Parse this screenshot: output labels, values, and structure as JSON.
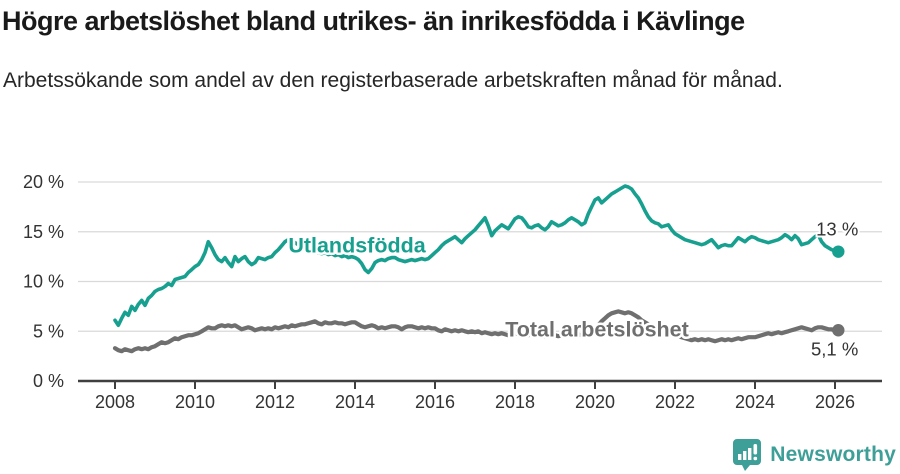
{
  "header": {
    "title": "Högre arbetslöshet bland utrikes- än inrikesfödda i Kävlinge",
    "subtitle": "Arbetssökande som andel av den registerbaserade arbetskraften månad för månad."
  },
  "chart_data": {
    "type": "line",
    "title": "Högre arbetslöshet bland utrikes- än inrikesfödda i Kävlinge",
    "subtitle": "Arbetssökande som andel av den registerbaserade arbetskraften månad för månad.",
    "grid": "horizontal",
    "legend": "inline-labels",
    "colors": {
      "grid_line": "#d9d9d9",
      "axis_line": "#3f3f3f",
      "tick_label": "#333333",
      "value_label": "#333333"
    },
    "x_axis": {
      "ticks": [
        2008,
        2010,
        2012,
        2014,
        2016,
        2018,
        2020,
        2022,
        2024,
        2026
      ],
      "tick_labels": [
        "2008",
        "2010",
        "2012",
        "2014",
        "2016",
        "2018",
        "2020",
        "2022",
        "2024",
        "2026"
      ],
      "range": [
        2007.1,
        2027.2
      ]
    },
    "y_axis": {
      "ticks": [
        0,
        5,
        10,
        15,
        20
      ],
      "tick_labels": [
        "0 %",
        "5 %",
        "10 %",
        "15 %",
        "20 %"
      ],
      "range": [
        0,
        21
      ],
      "unit": "%"
    },
    "x_start": 2008.0,
    "x_step": 0.08333,
    "series": [
      {
        "name": "Utlandsfödda",
        "label": "Utlandsfödda",
        "color": "#17a08f",
        "end_label": "13 %",
        "end_value": 13.0,
        "end_label_side": "above",
        "label_x": 2014.05,
        "label_y": 13.6,
        "values": [
          6.1,
          5.6,
          6.3,
          6.9,
          6.6,
          7.5,
          7.1,
          7.7,
          8.1,
          7.6,
          8.3,
          8.6,
          9.0,
          9.2,
          9.3,
          9.5,
          9.8,
          9.6,
          10.2,
          10.3,
          10.4,
          10.5,
          10.9,
          11.2,
          11.5,
          11.7,
          12.2,
          12.9,
          14.0,
          13.4,
          12.7,
          12.2,
          12.0,
          12.4,
          11.9,
          11.5,
          12.5,
          12.0,
          12.3,
          12.5,
          12.0,
          11.7,
          11.9,
          12.4,
          12.3,
          12.2,
          12.4,
          12.5,
          12.9,
          13.2,
          13.6,
          14.0,
          14.2,
          14.1,
          13.9,
          13.7,
          13.5,
          13.4,
          13.2,
          13.1,
          13.0,
          12.9,
          12.8,
          12.9,
          12.7,
          12.8,
          12.6,
          12.7,
          12.5,
          12.6,
          12.4,
          12.5,
          12.4,
          12.2,
          11.8,
          11.2,
          10.9,
          11.3,
          11.9,
          12.1,
          12.2,
          12.1,
          12.3,
          12.4,
          12.4,
          12.2,
          12.1,
          12.0,
          12.1,
          12.2,
          12.1,
          12.2,
          12.3,
          12.2,
          12.3,
          12.6,
          12.9,
          13.2,
          13.6,
          13.9,
          14.1,
          14.3,
          14.5,
          14.2,
          13.9,
          14.3,
          14.6,
          14.9,
          15.2,
          15.6,
          16.0,
          16.4,
          15.6,
          14.6,
          15.1,
          15.4,
          15.7,
          15.5,
          15.3,
          15.8,
          16.3,
          16.5,
          16.4,
          16.0,
          15.5,
          15.4,
          15.6,
          15.7,
          15.4,
          15.2,
          15.5,
          16.0,
          15.8,
          15.6,
          15.7,
          15.9,
          16.2,
          16.4,
          16.2,
          16.0,
          15.7,
          15.9,
          16.8,
          17.5,
          18.2,
          18.4,
          17.9,
          18.2,
          18.5,
          18.8,
          19.0,
          19.2,
          19.4,
          19.6,
          19.5,
          19.3,
          18.8,
          18.4,
          17.8,
          17.1,
          16.5,
          16.1,
          15.9,
          15.8,
          15.5,
          15.6,
          15.7,
          15.2,
          14.8,
          14.6,
          14.4,
          14.2,
          14.1,
          14.0,
          13.9,
          13.8,
          13.7,
          13.8,
          14.0,
          14.2,
          13.8,
          13.4,
          13.6,
          13.7,
          13.6,
          13.6,
          14.0,
          14.4,
          14.2,
          14.0,
          14.3,
          14.5,
          14.4,
          14.2,
          14.1,
          14.0,
          13.9,
          14.0,
          14.1,
          14.2,
          14.4,
          14.7,
          14.5,
          14.2,
          14.6,
          14.3,
          13.7,
          13.8,
          13.9,
          14.2,
          14.5,
          14.7,
          14.0,
          13.6,
          13.4,
          13.2,
          13.1,
          13.0
        ]
      },
      {
        "name": "Total arbetslöshet",
        "label": "Total arbetslöshet",
        "color": "#6f6f6f",
        "end_label": "5,1 %",
        "end_value": 5.1,
        "end_label_side": "below",
        "label_x": 2020.05,
        "label_y": 5.2,
        "values": [
          3.3,
          3.1,
          3.0,
          3.2,
          3.1,
          3.0,
          3.2,
          3.3,
          3.2,
          3.3,
          3.2,
          3.4,
          3.5,
          3.7,
          3.9,
          3.8,
          3.9,
          4.1,
          4.3,
          4.2,
          4.4,
          4.5,
          4.6,
          4.6,
          4.7,
          4.8,
          5.0,
          5.2,
          5.4,
          5.3,
          5.3,
          5.5,
          5.6,
          5.5,
          5.6,
          5.5,
          5.6,
          5.4,
          5.2,
          5.3,
          5.4,
          5.3,
          5.1,
          5.2,
          5.3,
          5.2,
          5.3,
          5.2,
          5.4,
          5.3,
          5.4,
          5.5,
          5.4,
          5.6,
          5.5,
          5.6,
          5.7,
          5.7,
          5.8,
          5.9,
          6.0,
          5.8,
          5.7,
          5.9,
          5.8,
          5.8,
          5.9,
          5.8,
          5.8,
          5.7,
          5.8,
          5.9,
          5.9,
          5.7,
          5.5,
          5.4,
          5.5,
          5.6,
          5.5,
          5.3,
          5.4,
          5.3,
          5.4,
          5.5,
          5.5,
          5.4,
          5.2,
          5.4,
          5.5,
          5.5,
          5.4,
          5.3,
          5.4,
          5.3,
          5.4,
          5.3,
          5.3,
          5.1,
          5.0,
          5.2,
          5.1,
          5.0,
          5.1,
          5.0,
          5.1,
          5.0,
          4.9,
          5.0,
          4.9,
          5.0,
          4.8,
          4.9,
          4.8,
          4.7,
          4.8,
          4.7,
          4.8,
          4.7,
          4.6,
          4.7,
          4.8,
          4.7,
          4.6,
          4.7,
          4.6,
          4.7,
          4.8,
          4.7,
          4.6,
          4.5,
          4.6,
          4.7,
          4.6,
          4.5,
          4.6,
          4.7,
          4.6,
          4.7,
          4.8,
          4.7,
          4.6,
          4.7,
          4.8,
          5.0,
          5.3,
          5.6,
          6.0,
          6.3,
          6.6,
          6.8,
          6.9,
          7.0,
          6.9,
          6.8,
          6.9,
          6.8,
          6.6,
          6.4,
          6.1,
          5.9,
          5.7,
          5.5,
          5.4,
          5.2,
          5.1,
          5.0,
          4.9,
          4.8,
          4.7,
          4.5,
          4.4,
          4.3,
          4.2,
          4.1,
          4.2,
          4.1,
          4.2,
          4.1,
          4.2,
          4.1,
          4.0,
          4.1,
          4.2,
          4.1,
          4.2,
          4.1,
          4.2,
          4.3,
          4.2,
          4.3,
          4.4,
          4.4,
          4.4,
          4.5,
          4.6,
          4.7,
          4.8,
          4.7,
          4.8,
          4.9,
          4.8,
          4.9,
          5.0,
          5.1,
          5.2,
          5.3,
          5.4,
          5.3,
          5.2,
          5.1,
          5.3,
          5.4,
          5.4,
          5.3,
          5.2,
          5.2,
          5.1,
          5.1
        ]
      }
    ]
  },
  "footer": {
    "brand": "Newsworthy",
    "brand_color": "#3d9f97",
    "logo_icon": "bar-chart-speech-bubble"
  }
}
